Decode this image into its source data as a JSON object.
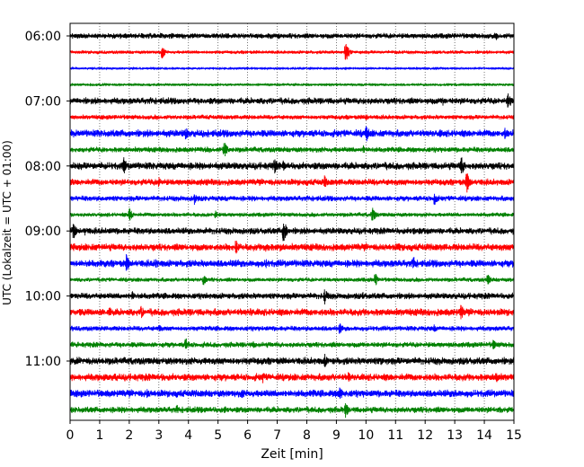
{
  "chart_data": {
    "type": "line",
    "subtype": "helicorder",
    "title": "",
    "xlabel": "Zeit  [min]",
    "ylabel": "UTC (Lokalzeit = UTC + 01:00)",
    "xlim": [
      0,
      15
    ],
    "x_ticks": [
      "0",
      "1",
      "2",
      "3",
      "4",
      "5",
      "6",
      "7",
      "8",
      "9",
      "10",
      "11",
      "12",
      "13",
      "14",
      "15"
    ],
    "y_ticks": [
      "06:00",
      "07:00",
      "08:00",
      "09:00",
      "10:00",
      "11:00"
    ],
    "grid": {
      "x": "dotted",
      "y": "none"
    },
    "legend": "none",
    "line_colors": [
      "#000000",
      "#ff0000",
      "#0000ff",
      "#008000"
    ],
    "traces": [
      {
        "start": "06:00",
        "color": "#000000",
        "amplitude": 0.15,
        "events": [
          [
            14.4,
            0.28
          ]
        ]
      },
      {
        "start": "06:15",
        "color": "#ff0000",
        "amplitude": 0.1,
        "events": [
          [
            3.1,
            0.5
          ],
          [
            9.3,
            0.75
          ]
        ]
      },
      {
        "start": "06:30",
        "color": "#0000ff",
        "amplitude": 0.06,
        "events": []
      },
      {
        "start": "06:45",
        "color": "#008000",
        "amplitude": 0.08,
        "events": []
      },
      {
        "start": "07:00",
        "color": "#000000",
        "amplitude": 0.18,
        "events": [
          [
            9.9,
            0.25
          ],
          [
            12.6,
            0.3
          ],
          [
            14.8,
            0.6
          ]
        ]
      },
      {
        "start": "07:15",
        "color": "#ff0000",
        "amplitude": 0.13,
        "events": [
          [
            10.0,
            0.25
          ]
        ]
      },
      {
        "start": "07:30",
        "color": "#0000ff",
        "amplitude": 0.2,
        "events": [
          [
            3.9,
            0.45
          ],
          [
            10.0,
            0.65
          ],
          [
            12.5,
            0.3
          ],
          [
            14.7,
            0.5
          ]
        ]
      },
      {
        "start": "07:45",
        "color": "#008000",
        "amplitude": 0.15,
        "events": [
          [
            5.2,
            0.6
          ],
          [
            9.9,
            0.3
          ]
        ]
      },
      {
        "start": "08:00",
        "color": "#000000",
        "amplitude": 0.2,
        "events": [
          [
            1.8,
            0.65
          ],
          [
            6.9,
            0.55
          ],
          [
            7.2,
            0.35
          ],
          [
            13.2,
            0.8
          ]
        ]
      },
      {
        "start": "08:15",
        "color": "#ff0000",
        "amplitude": 0.18,
        "events": [
          [
            3.0,
            0.4
          ],
          [
            8.6,
            0.45
          ],
          [
            13.4,
            0.75
          ]
        ]
      },
      {
        "start": "08:30",
        "color": "#0000ff",
        "amplitude": 0.15,
        "events": [
          [
            4.2,
            0.4
          ],
          [
            12.3,
            0.55
          ]
        ]
      },
      {
        "start": "08:45",
        "color": "#008000",
        "amplitude": 0.12,
        "events": [
          [
            2.0,
            0.45
          ],
          [
            4.9,
            0.3
          ],
          [
            10.2,
            0.6
          ]
        ]
      },
      {
        "start": "09:00",
        "color": "#000000",
        "amplitude": 0.18,
        "events": [
          [
            0.1,
            0.6
          ],
          [
            0.5,
            0.35
          ],
          [
            7.2,
            0.85
          ],
          [
            11.6,
            0.3
          ]
        ]
      },
      {
        "start": "09:15",
        "color": "#ff0000",
        "amplitude": 0.2,
        "events": [
          [
            0.7,
            0.3
          ],
          [
            5.6,
            0.55
          ],
          [
            6.6,
            0.45
          ],
          [
            7.1,
            0.3
          ],
          [
            11.1,
            0.35
          ]
        ]
      },
      {
        "start": "09:30",
        "color": "#0000ff",
        "amplitude": 0.2,
        "events": [
          [
            1.9,
            0.6
          ],
          [
            2.9,
            0.3
          ],
          [
            5.5,
            0.3
          ],
          [
            6.6,
            0.35
          ],
          [
            11.6,
            0.55
          ]
        ]
      },
      {
        "start": "09:45",
        "color": "#008000",
        "amplitude": 0.12,
        "events": [
          [
            4.5,
            0.4
          ],
          [
            10.3,
            0.5
          ],
          [
            14.1,
            0.45
          ]
        ]
      },
      {
        "start": "10:00",
        "color": "#000000",
        "amplitude": 0.17,
        "events": [
          [
            2.1,
            0.35
          ],
          [
            8.6,
            0.55
          ],
          [
            9.9,
            0.3
          ]
        ]
      },
      {
        "start": "10:15",
        "color": "#ff0000",
        "amplitude": 0.2,
        "events": [
          [
            1.3,
            0.45
          ],
          [
            2.4,
            0.45
          ],
          [
            6.1,
            0.3
          ],
          [
            13.2,
            0.6
          ]
        ]
      },
      {
        "start": "10:30",
        "color": "#0000ff",
        "amplitude": 0.14,
        "events": [
          [
            3.0,
            0.3
          ],
          [
            9.1,
            0.4
          ],
          [
            12.3,
            0.3
          ]
        ]
      },
      {
        "start": "10:45",
        "color": "#008000",
        "amplitude": 0.15,
        "events": [
          [
            3.9,
            0.5
          ],
          [
            6.2,
            0.3
          ],
          [
            14.3,
            0.35
          ]
        ]
      },
      {
        "start": "11:00",
        "color": "#000000",
        "amplitude": 0.2,
        "events": [
          [
            8.6,
            0.5
          ],
          [
            10.5,
            0.3
          ]
        ]
      },
      {
        "start": "11:15",
        "color": "#ff0000",
        "amplitude": 0.2,
        "events": [
          [
            1.5,
            0.3
          ],
          [
            3.1,
            0.3
          ],
          [
            6.5,
            0.45
          ],
          [
            9.4,
            0.4
          ],
          [
            14.4,
            0.45
          ]
        ]
      },
      {
        "start": "11:30",
        "color": "#0000ff",
        "amplitude": 0.2,
        "events": [
          [
            2.6,
            0.3
          ],
          [
            5.8,
            0.35
          ],
          [
            8.2,
            0.3
          ],
          [
            9.1,
            0.55
          ],
          [
            13.0,
            0.3
          ]
        ]
      },
      {
        "start": "11:45",
        "color": "#008000",
        "amplitude": 0.17,
        "events": [
          [
            3.6,
            0.35
          ],
          [
            5.2,
            0.3
          ],
          [
            9.3,
            0.55
          ],
          [
            14.5,
            0.3
          ]
        ]
      }
    ]
  }
}
